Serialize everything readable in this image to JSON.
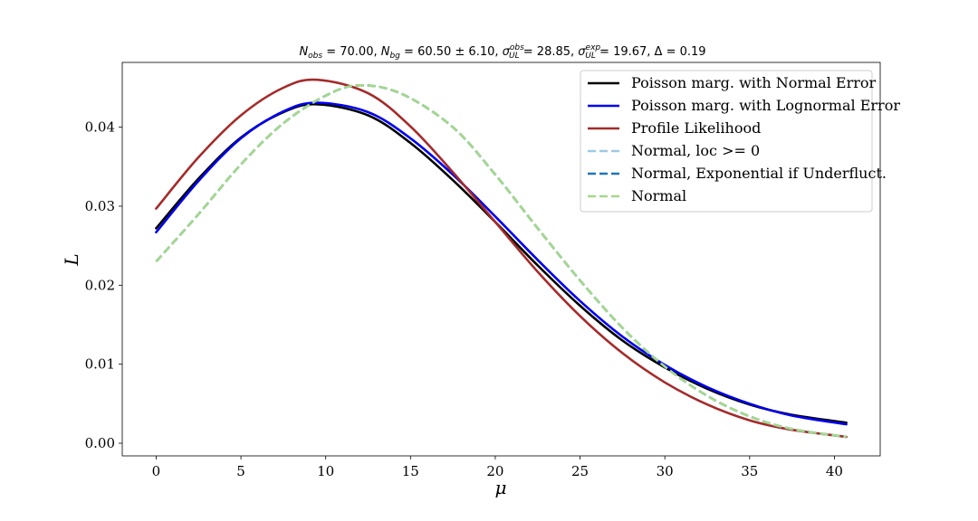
{
  "chart_data": {
    "type": "line",
    "title": "N_obs = 70.00, N_bg = 60.50 ± 6.10, σ_UL^obs = 28.85, σ_UL^exp = 19.67, Δ = 0.19",
    "xlabel": "μ",
    "ylabel": "L",
    "xlim": [
      -2.0,
      42.7
    ],
    "ylim": [
      -0.0016,
      0.0482
    ],
    "xticks": [
      0,
      5,
      10,
      15,
      20,
      25,
      30,
      35,
      40
    ],
    "yticks": [
      0.0,
      0.01,
      0.02,
      0.03,
      0.04
    ],
    "xtick_labels": [
      "0",
      "5",
      "10",
      "15",
      "20",
      "25",
      "30",
      "35",
      "40"
    ],
    "ytick_labels": [
      "0.00",
      "0.01",
      "0.02",
      "0.03",
      "0.04"
    ],
    "grid": false,
    "legend_position": "top-right",
    "series": [
      {
        "name": "Poisson marg. with Normal Error",
        "color": "#000000",
        "dash": "solid",
        "x": [
          0,
          2.5,
          5,
          7.5,
          9.5,
          12.5,
          15,
          17.5,
          20,
          22.5,
          25,
          27.5,
          30,
          32.5,
          35,
          37.5,
          40.7
        ],
        "y": [
          0.0272,
          0.0335,
          0.0387,
          0.0419,
          0.0429,
          0.0415,
          0.038,
          0.0333,
          0.028,
          0.0225,
          0.0174,
          0.013,
          0.0096,
          0.0069,
          0.0049,
          0.0036,
          0.0026
        ]
      },
      {
        "name": "Poisson marg. with Lognormal Error",
        "color": "#0000ee",
        "dash": "solid",
        "x": [
          0,
          2.5,
          5,
          7.5,
          9.5,
          12.5,
          15,
          17.5,
          20,
          22.5,
          25,
          27.5,
          30,
          32.5,
          35,
          37.5,
          40.7
        ],
        "y": [
          0.0267,
          0.0332,
          0.0386,
          0.042,
          0.0431,
          0.0419,
          0.0386,
          0.034,
          0.0287,
          0.0232,
          0.018,
          0.0135,
          0.0099,
          0.0071,
          0.005,
          0.0035,
          0.0024
        ]
      },
      {
        "name": "Profile Likelihood",
        "color": "#a52a2a",
        "dash": "solid",
        "x": [
          0,
          2.5,
          5,
          7.5,
          9.5,
          12.5,
          15,
          17.5,
          20,
          22.5,
          25,
          27.5,
          30,
          32.5,
          35,
          37.5,
          40.7
        ],
        "y": [
          0.0297,
          0.0362,
          0.0415,
          0.045,
          0.046,
          0.0443,
          0.0401,
          0.0343,
          0.028,
          0.0217,
          0.0161,
          0.0114,
          0.0077,
          0.0049,
          0.0029,
          0.0017,
          0.0008
        ]
      },
      {
        "name": "Normal, loc >= 0",
        "color": "#9ecae1",
        "dash": "dashed",
        "x": [
          0,
          2.5,
          5,
          7.5,
          10,
          12,
          14.5,
          17.5,
          20,
          22.5,
          25,
          27.5,
          30,
          32.5,
          35,
          37.5,
          40.7
        ],
        "y": [
          0.023,
          0.029,
          0.0353,
          0.0405,
          0.044,
          0.0453,
          0.0442,
          0.04,
          0.034,
          0.0272,
          0.0206,
          0.0146,
          0.0097,
          0.006,
          0.0034,
          0.0018,
          0.0008
        ]
      },
      {
        "name": "Normal, Exponential if Underfluct.",
        "color": "#1f77b4",
        "dash": "dashed",
        "x": [
          0,
          2.5,
          5,
          7.5,
          10,
          12,
          14.5,
          17.5,
          20,
          22.5,
          25,
          27.5,
          30,
          32.5,
          35,
          37.5,
          40.7
        ],
        "y": [
          0.023,
          0.029,
          0.0353,
          0.0405,
          0.044,
          0.0453,
          0.0442,
          0.04,
          0.034,
          0.0272,
          0.0206,
          0.0146,
          0.0097,
          0.006,
          0.0034,
          0.0018,
          0.0008
        ]
      },
      {
        "name": "Normal",
        "color": "#a6d88a",
        "dash": "dashed",
        "x": [
          0,
          2.5,
          5,
          7.5,
          10,
          12,
          14.5,
          17.5,
          20,
          22.5,
          25,
          27.5,
          30,
          32.5,
          35,
          37.5,
          40.7
        ],
        "y": [
          0.023,
          0.029,
          0.0353,
          0.0405,
          0.044,
          0.0453,
          0.0442,
          0.04,
          0.034,
          0.0272,
          0.0206,
          0.0146,
          0.0097,
          0.006,
          0.0034,
          0.0018,
          0.0008
        ]
      }
    ]
  }
}
